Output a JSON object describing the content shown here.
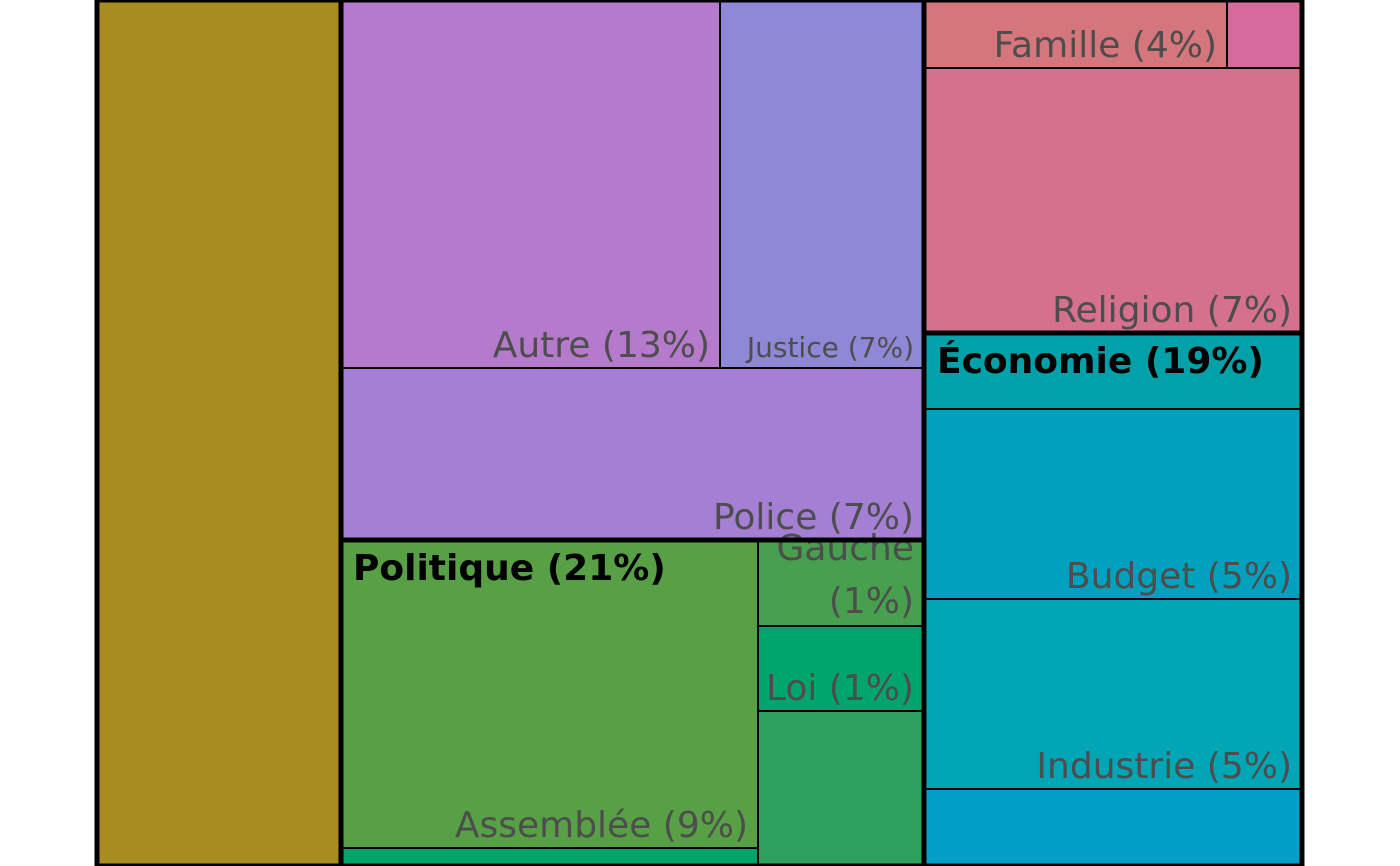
{
  "chart_data": {
    "type": "treemap",
    "groups": [
      {
        "label": "Politique (21%)"
      },
      {
        "label": "Économie (19%)"
      }
    ],
    "tiles": [
      {
        "color": "#a88b21"
      },
      {
        "label": "Autre (13%)",
        "color": "#b57acc"
      },
      {
        "label": "Justice (7%)",
        "color": "#8e88d6"
      },
      {
        "label": "Police (7%)",
        "color": "#a47fd4"
      },
      {
        "label": "Assemblée (9%)",
        "color": "#58a045"
      },
      {
        "color": "#00a46b"
      },
      {
        "label_lines": [
          "Gauche",
          "(1%)"
        ],
        "color": "#47a04e"
      },
      {
        "label": "Loi (1%)",
        "color": "#00a56e"
      },
      {
        "color": "#2ea15e"
      },
      {
        "label": "Famille (4%)",
        "color": "#d4767c"
      },
      {
        "color": "#d46b9c"
      },
      {
        "label": "Religion (7%)",
        "color": "#d5718d"
      },
      {
        "color": "#00a1a8"
      },
      {
        "label": "Budget (5%)",
        "color": "#00a1bf"
      },
      {
        "label": "Industrie (5%)",
        "color": "#00a6b6"
      },
      {
        "color": "#009fc6"
      }
    ]
  }
}
